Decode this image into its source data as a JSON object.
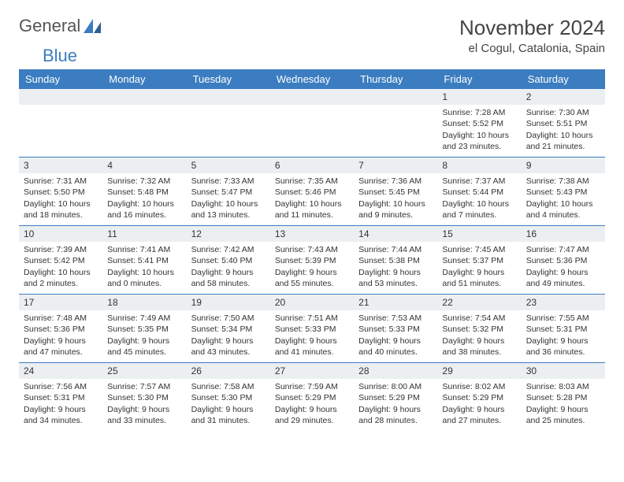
{
  "brand": {
    "part1": "General",
    "part2": "Blue"
  },
  "title": "November 2024",
  "location": "el Cogul, Catalonia, Spain",
  "styling": {
    "page_bg": "#ffffff",
    "header_band_bg": "#3b7dc0",
    "header_band_text": "#ffffff",
    "daynum_bg": "#eceff1",
    "week_divider": "#3b7dc0",
    "text_color": "#333333",
    "title_fontsize": 26,
    "location_fontsize": 15,
    "dow_fontsize": 13,
    "body_fontsize": 10.5,
    "logo_fontsize": 22
  },
  "dow": [
    "Sunday",
    "Monday",
    "Tuesday",
    "Wednesday",
    "Thursday",
    "Friday",
    "Saturday"
  ],
  "weeks": [
    [
      null,
      null,
      null,
      null,
      null,
      {
        "n": "1",
        "sunrise": "Sunrise: 7:28 AM",
        "sunset": "Sunset: 5:52 PM",
        "day1": "Daylight: 10 hours",
        "day2": "and 23 minutes."
      },
      {
        "n": "2",
        "sunrise": "Sunrise: 7:30 AM",
        "sunset": "Sunset: 5:51 PM",
        "day1": "Daylight: 10 hours",
        "day2": "and 21 minutes."
      }
    ],
    [
      {
        "n": "3",
        "sunrise": "Sunrise: 7:31 AM",
        "sunset": "Sunset: 5:50 PM",
        "day1": "Daylight: 10 hours",
        "day2": "and 18 minutes."
      },
      {
        "n": "4",
        "sunrise": "Sunrise: 7:32 AM",
        "sunset": "Sunset: 5:48 PM",
        "day1": "Daylight: 10 hours",
        "day2": "and 16 minutes."
      },
      {
        "n": "5",
        "sunrise": "Sunrise: 7:33 AM",
        "sunset": "Sunset: 5:47 PM",
        "day1": "Daylight: 10 hours",
        "day2": "and 13 minutes."
      },
      {
        "n": "6",
        "sunrise": "Sunrise: 7:35 AM",
        "sunset": "Sunset: 5:46 PM",
        "day1": "Daylight: 10 hours",
        "day2": "and 11 minutes."
      },
      {
        "n": "7",
        "sunrise": "Sunrise: 7:36 AM",
        "sunset": "Sunset: 5:45 PM",
        "day1": "Daylight: 10 hours",
        "day2": "and 9 minutes."
      },
      {
        "n": "8",
        "sunrise": "Sunrise: 7:37 AM",
        "sunset": "Sunset: 5:44 PM",
        "day1": "Daylight: 10 hours",
        "day2": "and 7 minutes."
      },
      {
        "n": "9",
        "sunrise": "Sunrise: 7:38 AM",
        "sunset": "Sunset: 5:43 PM",
        "day1": "Daylight: 10 hours",
        "day2": "and 4 minutes."
      }
    ],
    [
      {
        "n": "10",
        "sunrise": "Sunrise: 7:39 AM",
        "sunset": "Sunset: 5:42 PM",
        "day1": "Daylight: 10 hours",
        "day2": "and 2 minutes."
      },
      {
        "n": "11",
        "sunrise": "Sunrise: 7:41 AM",
        "sunset": "Sunset: 5:41 PM",
        "day1": "Daylight: 10 hours",
        "day2": "and 0 minutes."
      },
      {
        "n": "12",
        "sunrise": "Sunrise: 7:42 AM",
        "sunset": "Sunset: 5:40 PM",
        "day1": "Daylight: 9 hours",
        "day2": "and 58 minutes."
      },
      {
        "n": "13",
        "sunrise": "Sunrise: 7:43 AM",
        "sunset": "Sunset: 5:39 PM",
        "day1": "Daylight: 9 hours",
        "day2": "and 55 minutes."
      },
      {
        "n": "14",
        "sunrise": "Sunrise: 7:44 AM",
        "sunset": "Sunset: 5:38 PM",
        "day1": "Daylight: 9 hours",
        "day2": "and 53 minutes."
      },
      {
        "n": "15",
        "sunrise": "Sunrise: 7:45 AM",
        "sunset": "Sunset: 5:37 PM",
        "day1": "Daylight: 9 hours",
        "day2": "and 51 minutes."
      },
      {
        "n": "16",
        "sunrise": "Sunrise: 7:47 AM",
        "sunset": "Sunset: 5:36 PM",
        "day1": "Daylight: 9 hours",
        "day2": "and 49 minutes."
      }
    ],
    [
      {
        "n": "17",
        "sunrise": "Sunrise: 7:48 AM",
        "sunset": "Sunset: 5:36 PM",
        "day1": "Daylight: 9 hours",
        "day2": "and 47 minutes."
      },
      {
        "n": "18",
        "sunrise": "Sunrise: 7:49 AM",
        "sunset": "Sunset: 5:35 PM",
        "day1": "Daylight: 9 hours",
        "day2": "and 45 minutes."
      },
      {
        "n": "19",
        "sunrise": "Sunrise: 7:50 AM",
        "sunset": "Sunset: 5:34 PM",
        "day1": "Daylight: 9 hours",
        "day2": "and 43 minutes."
      },
      {
        "n": "20",
        "sunrise": "Sunrise: 7:51 AM",
        "sunset": "Sunset: 5:33 PM",
        "day1": "Daylight: 9 hours",
        "day2": "and 41 minutes."
      },
      {
        "n": "21",
        "sunrise": "Sunrise: 7:53 AM",
        "sunset": "Sunset: 5:33 PM",
        "day1": "Daylight: 9 hours",
        "day2": "and 40 minutes."
      },
      {
        "n": "22",
        "sunrise": "Sunrise: 7:54 AM",
        "sunset": "Sunset: 5:32 PM",
        "day1": "Daylight: 9 hours",
        "day2": "and 38 minutes."
      },
      {
        "n": "23",
        "sunrise": "Sunrise: 7:55 AM",
        "sunset": "Sunset: 5:31 PM",
        "day1": "Daylight: 9 hours",
        "day2": "and 36 minutes."
      }
    ],
    [
      {
        "n": "24",
        "sunrise": "Sunrise: 7:56 AM",
        "sunset": "Sunset: 5:31 PM",
        "day1": "Daylight: 9 hours",
        "day2": "and 34 minutes."
      },
      {
        "n": "25",
        "sunrise": "Sunrise: 7:57 AM",
        "sunset": "Sunset: 5:30 PM",
        "day1": "Daylight: 9 hours",
        "day2": "and 33 minutes."
      },
      {
        "n": "26",
        "sunrise": "Sunrise: 7:58 AM",
        "sunset": "Sunset: 5:30 PM",
        "day1": "Daylight: 9 hours",
        "day2": "and 31 minutes."
      },
      {
        "n": "27",
        "sunrise": "Sunrise: 7:59 AM",
        "sunset": "Sunset: 5:29 PM",
        "day1": "Daylight: 9 hours",
        "day2": "and 29 minutes."
      },
      {
        "n": "28",
        "sunrise": "Sunrise: 8:00 AM",
        "sunset": "Sunset: 5:29 PM",
        "day1": "Daylight: 9 hours",
        "day2": "and 28 minutes."
      },
      {
        "n": "29",
        "sunrise": "Sunrise: 8:02 AM",
        "sunset": "Sunset: 5:29 PM",
        "day1": "Daylight: 9 hours",
        "day2": "and 27 minutes."
      },
      {
        "n": "30",
        "sunrise": "Sunrise: 8:03 AM",
        "sunset": "Sunset: 5:28 PM",
        "day1": "Daylight: 9 hours",
        "day2": "and 25 minutes."
      }
    ]
  ]
}
